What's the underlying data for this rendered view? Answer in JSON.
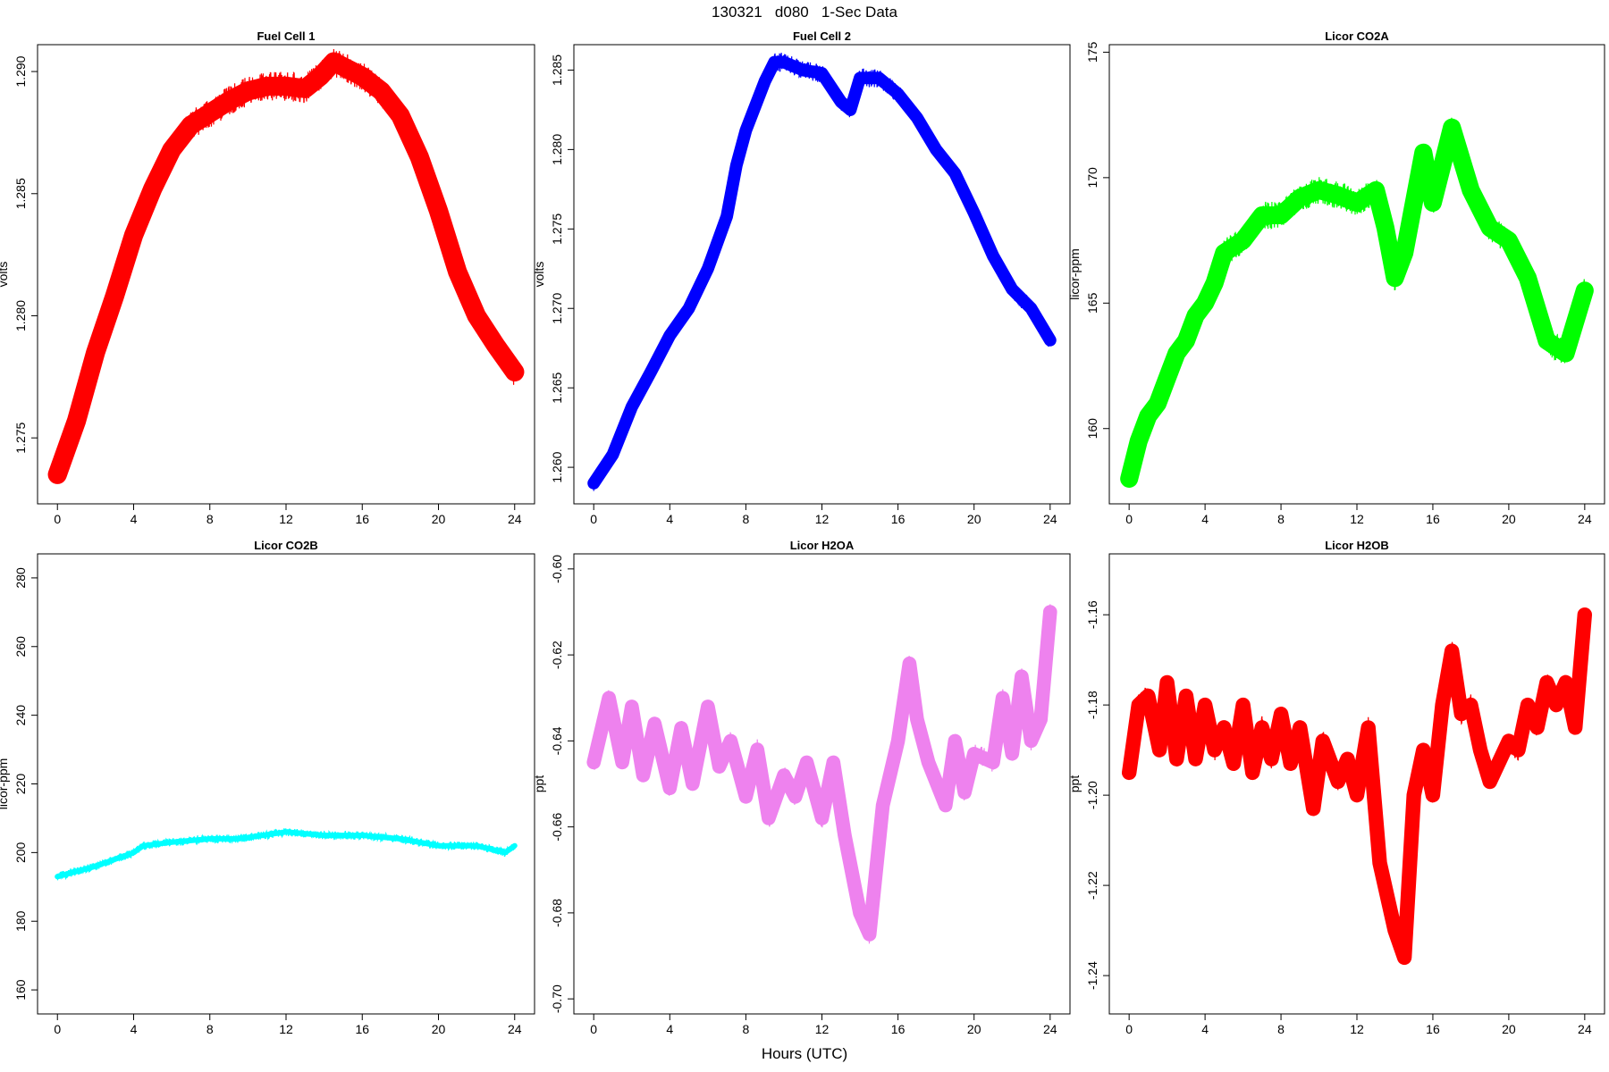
{
  "title": "130321   d080   1-Sec Data",
  "xlabel": "Hours (UTC)",
  "chart_data": [
    {
      "type": "line",
      "title": "Fuel Cell 1",
      "ylabel": "volts",
      "color": "#ff0000",
      "xlim": [
        0,
        24
      ],
      "ylim": [
        1.2723,
        1.2911
      ],
      "xticks": [
        0,
        4,
        8,
        12,
        16,
        20,
        24
      ],
      "yticks": [
        1.275,
        1.28,
        1.285,
        1.29
      ],
      "ytick_labels": [
        "1.275",
        "1.280",
        "1.285",
        "1.290"
      ],
      "x": [
        0,
        1,
        2,
        3,
        4,
        5,
        6,
        7,
        8,
        9,
        10,
        11,
        12,
        13,
        13.8,
        14.5,
        15,
        16,
        17,
        18,
        19,
        20,
        21,
        22,
        23,
        24
      ],
      "y": [
        1.2735,
        1.2757,
        1.2785,
        1.2808,
        1.2833,
        1.2852,
        1.2868,
        1.2878,
        1.2883,
        1.2888,
        1.2892,
        1.2894,
        1.2894,
        1.2893,
        1.2898,
        1.2904,
        1.2902,
        1.2898,
        1.2892,
        1.2882,
        1.2865,
        1.2843,
        1.2818,
        1.28,
        1.2788,
        1.2777
      ],
      "noise": 0.0006
    },
    {
      "type": "line",
      "title": "Fuel Cell 2",
      "ylabel": "volts",
      "color": "#0000ff",
      "xlim": [
        0,
        24
      ],
      "ylim": [
        1.2577,
        1.2866
      ],
      "xticks": [
        0,
        4,
        8,
        12,
        16,
        20,
        24
      ],
      "yticks": [
        1.26,
        1.265,
        1.27,
        1.275,
        1.28,
        1.285
      ],
      "ytick_labels": [
        "1.260",
        "1.265",
        "1.270",
        "1.275",
        "1.280",
        "1.285"
      ],
      "x": [
        0,
        1,
        2,
        3,
        4,
        5,
        6,
        7,
        7.5,
        8,
        9,
        9.5,
        10,
        11,
        12,
        13,
        13.5,
        14,
        15,
        16,
        17,
        18,
        19,
        20,
        21,
        22,
        23,
        24
      ],
      "y": [
        1.259,
        1.2608,
        1.2638,
        1.266,
        1.2683,
        1.27,
        1.2725,
        1.2758,
        1.279,
        1.2812,
        1.2843,
        1.2855,
        1.2855,
        1.285,
        1.2848,
        1.283,
        1.2825,
        1.2845,
        1.2845,
        1.2835,
        1.282,
        1.28,
        1.2785,
        1.276,
        1.2733,
        1.2712,
        1.27,
        1.268
      ],
      "noise": 0.0006
    },
    {
      "type": "line",
      "title": "Licor CO2A",
      "ylabel": "licor-ppm",
      "color": "#00ff00",
      "xlim": [
        0,
        24
      ],
      "ylim": [
        157,
        175.3
      ],
      "xticks": [
        0,
        4,
        8,
        12,
        16,
        20,
        24
      ],
      "yticks": [
        160,
        165,
        170,
        175
      ],
      "ytick_labels": [
        "160",
        "165",
        "170",
        "175"
      ],
      "x": [
        0,
        0.5,
        1,
        1.5,
        2,
        2.5,
        3,
        3.5,
        4,
        4.5,
        5,
        6,
        7,
        8,
        9,
        10,
        11,
        12,
        13,
        13.5,
        14,
        14.5,
        15,
        15.5,
        16,
        16.5,
        17,
        18,
        19,
        20,
        21,
        22,
        23,
        24
      ],
      "y": [
        158,
        159.5,
        160.5,
        161,
        162,
        163,
        163.5,
        164.5,
        165,
        165.8,
        167,
        167.5,
        168.5,
        168.5,
        169.2,
        169.5,
        169.3,
        169,
        169.5,
        168,
        166,
        167,
        169,
        171,
        169,
        170.5,
        172,
        169.5,
        168,
        167.5,
        166,
        163.5,
        163,
        165.5
      ],
      "noise": 0.55
    },
    {
      "type": "line",
      "title": "Licor CO2B",
      "ylabel": "licor-ppm",
      "color": "#00ffff",
      "xlim": [
        0,
        24
      ],
      "ylim": [
        153,
        287
      ],
      "xticks": [
        0,
        4,
        8,
        12,
        16,
        20,
        24
      ],
      "yticks": [
        160,
        180,
        200,
        220,
        240,
        260,
        280
      ],
      "ytick_labels": [
        "160",
        "180",
        "200",
        "220",
        "240",
        "260",
        "280"
      ],
      "x": [
        0,
        2,
        4,
        4.5,
        6,
        8,
        9.5,
        12,
        14,
        16,
        18,
        20,
        22,
        23.5,
        24
      ],
      "y": [
        193,
        196,
        200,
        202,
        203,
        204,
        204,
        206,
        205,
        205,
        204,
        202,
        202,
        200,
        202
      ],
      "noise": 1.2
    },
    {
      "type": "line",
      "title": "Licor H2OA",
      "ylabel": "ppt",
      "color": "#ee82ee",
      "xlim": [
        0,
        24
      ],
      "ylim": [
        -0.7035,
        -0.5965
      ],
      "xticks": [
        0,
        4,
        8,
        12,
        16,
        20,
        24
      ],
      "yticks": [
        -0.7,
        -0.68,
        -0.66,
        -0.64,
        -0.62,
        -0.6
      ],
      "ytick_labels": [
        "-0.70",
        "-0.68",
        "-0.66",
        "-0.64",
        "-0.62",
        "-0.60"
      ],
      "x": [
        0,
        0.8,
        1.5,
        2,
        2.6,
        3.2,
        4,
        4.6,
        5.2,
        6,
        6.6,
        7.2,
        8,
        8.6,
        9.2,
        10,
        10.6,
        11.2,
        12,
        12.6,
        13.2,
        14,
        14.5,
        15.2,
        16,
        16.6,
        17,
        17.6,
        18.5,
        19,
        19.5,
        20,
        21,
        21.5,
        22,
        22.5,
        23,
        23.5,
        24
      ],
      "y": [
        -0.645,
        -0.63,
        -0.645,
        -0.632,
        -0.648,
        -0.636,
        -0.651,
        -0.637,
        -0.65,
        -0.632,
        -0.646,
        -0.64,
        -0.653,
        -0.642,
        -0.658,
        -0.648,
        -0.653,
        -0.645,
        -0.658,
        -0.645,
        -0.662,
        -0.68,
        -0.685,
        -0.655,
        -0.64,
        -0.622,
        -0.635,
        -0.645,
        -0.655,
        -0.64,
        -0.652,
        -0.643,
        -0.645,
        -0.63,
        -0.643,
        -0.625,
        -0.64,
        -0.635,
        -0.61
      ],
      "noise": 0.0025
    },
    {
      "type": "line",
      "title": "Licor H2OB",
      "ylabel": "ppt",
      "color": "#ff0000",
      "xlim": [
        0,
        24
      ],
      "ylim": [
        -1.2485,
        -1.1465
      ],
      "xticks": [
        0,
        4,
        8,
        12,
        16,
        20,
        24
      ],
      "yticks": [
        -1.24,
        -1.22,
        -1.2,
        -1.18,
        -1.16
      ],
      "ytick_labels": [
        "-1.24",
        "-1.22",
        "-1.20",
        "-1.18",
        "-1.16"
      ],
      "x": [
        0,
        0.5,
        1,
        1.6,
        2,
        2.5,
        3,
        3.5,
        4,
        4.5,
        5,
        5.5,
        6,
        6.5,
        7,
        7.5,
        8,
        8.5,
        9,
        9.7,
        10.2,
        11,
        11.5,
        12,
        12.6,
        13.2,
        14,
        14.5,
        15,
        15.5,
        16,
        16.5,
        17,
        17.5,
        18,
        18.5,
        19,
        20,
        20.5,
        21,
        21.5,
        22,
        22.5,
        23,
        23.5,
        24
      ],
      "y": [
        -1.195,
        -1.18,
        -1.178,
        -1.19,
        -1.175,
        -1.192,
        -1.178,
        -1.192,
        -1.18,
        -1.19,
        -1.185,
        -1.193,
        -1.18,
        -1.195,
        -1.185,
        -1.192,
        -1.182,
        -1.193,
        -1.185,
        -1.203,
        -1.188,
        -1.197,
        -1.192,
        -1.2,
        -1.185,
        -1.215,
        -1.23,
        -1.236,
        -1.2,
        -1.19,
        -1.2,
        -1.18,
        -1.168,
        -1.182,
        -1.18,
        -1.19,
        -1.197,
        -1.188,
        -1.19,
        -1.18,
        -1.185,
        -1.175,
        -1.18,
        -1.175,
        -1.185,
        -1.16
      ],
      "noise": 0.0025
    }
  ]
}
